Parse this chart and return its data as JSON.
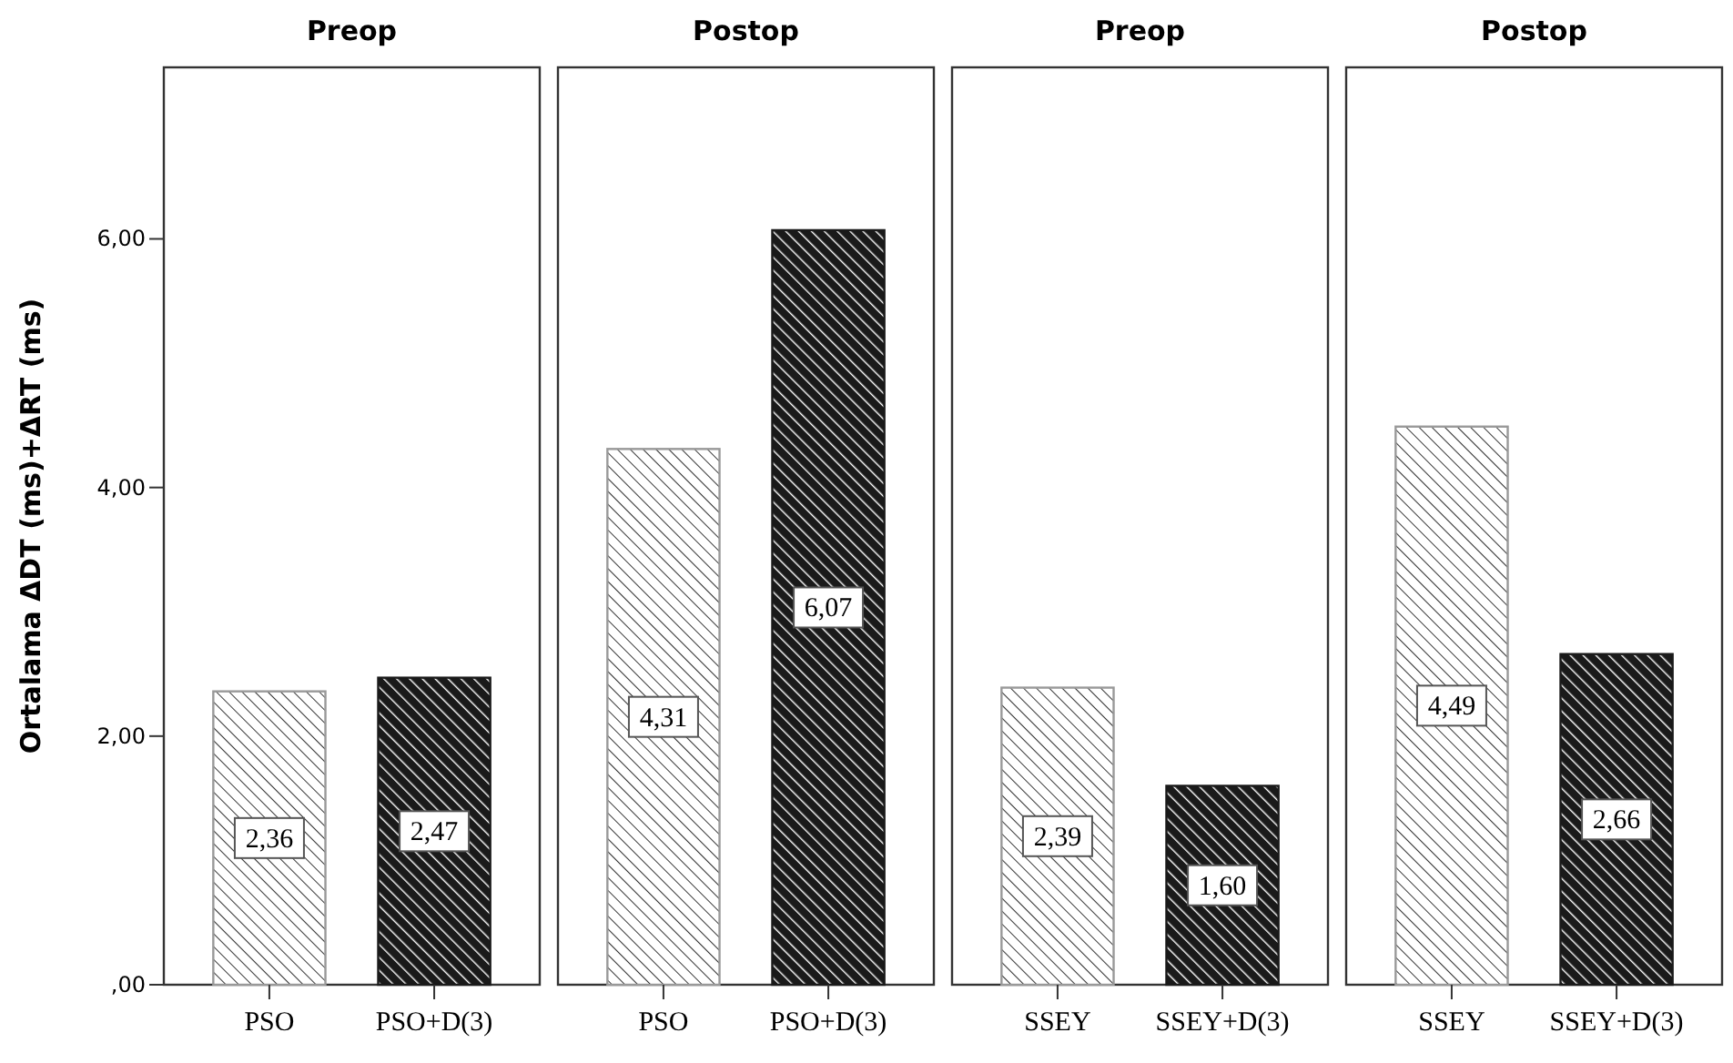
{
  "chart_data": [
    {
      "type": "bar",
      "title": "Preop",
      "ylabel": "Ortalama ΔDT (ms)+ΔRT (ms)",
      "categories": [
        "PSO",
        "PSO+D(3)"
      ],
      "values": [
        2.36,
        2.47
      ],
      "value_labels": [
        "2,36",
        "2,47"
      ],
      "colors": [
        "#999999",
        "#1a1a1a"
      ],
      "ylim": [
        0,
        7.38
      ],
      "yticks": [
        {
          "value": 0,
          "label": ",00"
        },
        {
          "value": 2,
          "label": "2,00"
        },
        {
          "value": 4,
          "label": "4,00"
        },
        {
          "value": 6,
          "label": "6,00"
        }
      ]
    },
    {
      "type": "bar",
      "title": "Postop",
      "categories": [
        "PSO",
        "PSO+D(3)"
      ],
      "values": [
        4.31,
        6.07
      ],
      "value_labels": [
        "4,31",
        "6,07"
      ],
      "colors": [
        "#999999",
        "#1a1a1a"
      ],
      "ylim": [
        0,
        7.38
      ],
      "tick_labels": "x"
    },
    {
      "type": "bar",
      "title": "Preop",
      "categories": [
        "SSEY",
        "SSEY+D(3)"
      ],
      "values": [
        2.39,
        1.6
      ],
      "value_labels": [
        "2,39",
        "1,60"
      ],
      "colors": [
        "#999999",
        "#1a1a1a"
      ],
      "ylim": [
        0,
        7.38
      ],
      "tick_labels": "x"
    },
    {
      "type": "bar",
      "title": "Postop",
      "categories": [
        "SSEY",
        "SSEY+D(3)"
      ],
      "values": [
        4.49,
        2.66
      ],
      "value_labels": [
        "4,49",
        "2,66"
      ],
      "colors": [
        "#999999",
        "#1a1a1a"
      ],
      "ylim": [
        0,
        7.38
      ],
      "tick_labels": "x"
    }
  ]
}
